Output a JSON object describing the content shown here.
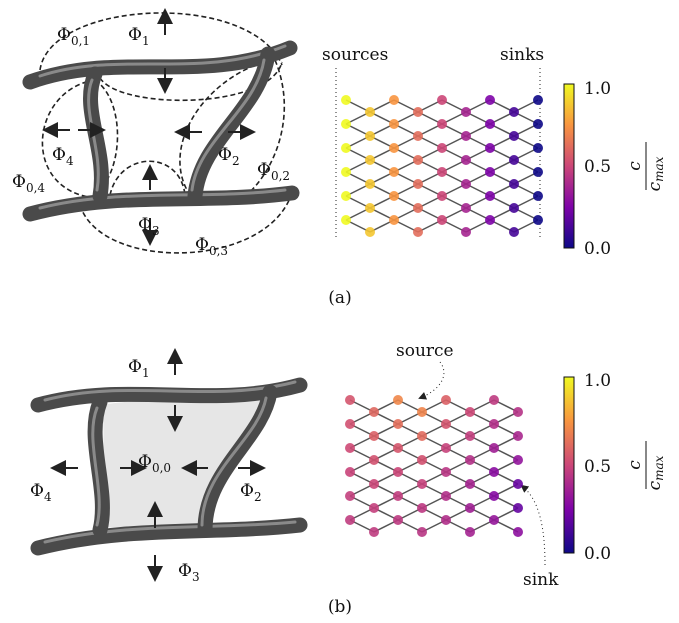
{
  "panel_a": {
    "phi_labels": [
      {
        "symbol": "Φ",
        "sub": "0,1"
      },
      {
        "symbol": "Φ",
        "sub": "1"
      },
      {
        "symbol": "Φ",
        "sub": "4"
      },
      {
        "symbol": "Φ",
        "sub": "2"
      },
      {
        "symbol": "Φ",
        "sub": "0,4"
      },
      {
        "symbol": "Φ",
        "sub": "0,2"
      },
      {
        "symbol": "Φ",
        "sub": "3"
      },
      {
        "symbol": "Φ",
        "sub": "0,3"
      }
    ],
    "sources_label": "sources",
    "sinks_label": "sinks",
    "colorbar": {
      "ticks": [
        "1.0",
        "0.5",
        "0.0"
      ],
      "label_num": "c",
      "label_den": "c",
      "label_den_sub": "max"
    },
    "caption": "(a)"
  },
  "panel_b": {
    "phi_labels": [
      {
        "symbol": "Φ",
        "sub": "1"
      },
      {
        "symbol": "Φ",
        "sub": "0,0"
      },
      {
        "symbol": "Φ",
        "sub": "4"
      },
      {
        "symbol": "Φ",
        "sub": "2"
      },
      {
        "symbol": "Φ",
        "sub": "3"
      }
    ],
    "source_label": "source",
    "sink_label": "sink",
    "colorbar": {
      "ticks": [
        "1.0",
        "0.5",
        "0.0"
      ],
      "label_num": "c",
      "label_den": "c",
      "label_den_sub": "max"
    },
    "caption": "(b)"
  }
}
